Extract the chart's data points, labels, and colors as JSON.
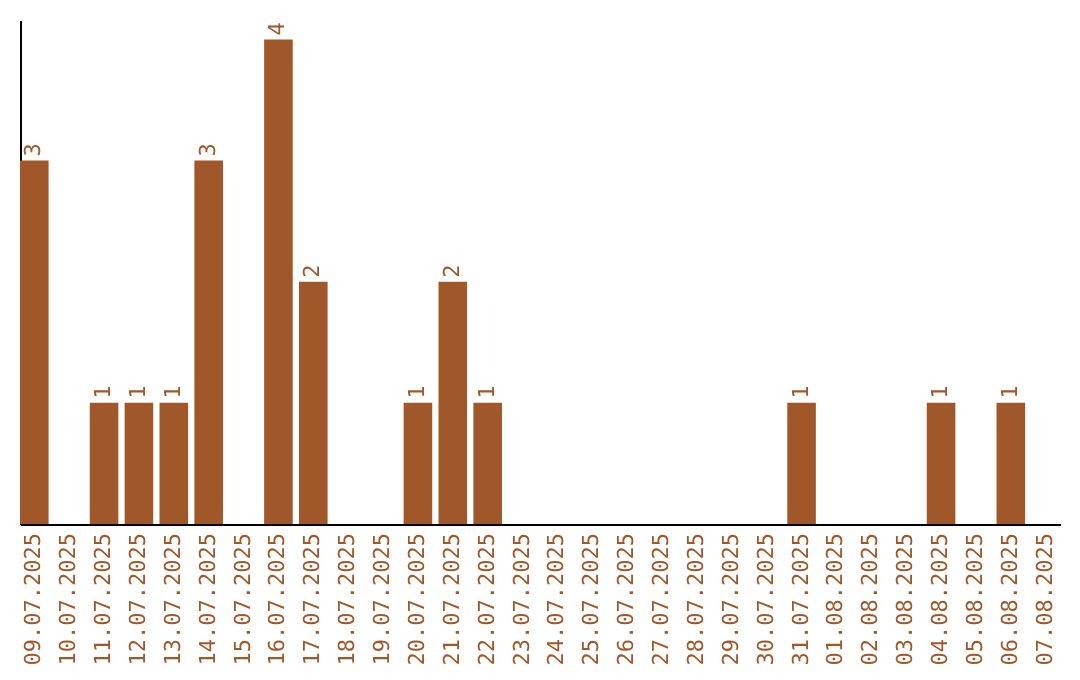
{
  "chart_data": {
    "type": "bar",
    "categories": [
      "09.07.2025",
      "10.07.2025",
      "11.07.2025",
      "12.07.2025",
      "13.07.2025",
      "14.07.2025",
      "15.07.2025",
      "16.07.2025",
      "17.07.2025",
      "18.07.2025",
      "19.07.2025",
      "20.07.2025",
      "21.07.2025",
      "22.07.2025",
      "23.07.2025",
      "24.07.2025",
      "25.07.2025",
      "26.07.2025",
      "27.07.2025",
      "28.07.2025",
      "29.07.2025",
      "30.07.2025",
      "31.07.2025",
      "01.08.2025",
      "02.08.2025",
      "03.08.2025",
      "04.08.2025",
      "05.08.2025",
      "06.08.2025",
      "07.08.2025"
    ],
    "values": [
      3,
      0,
      1,
      1,
      1,
      3,
      0,
      4,
      2,
      0,
      0,
      1,
      2,
      1,
      0,
      0,
      0,
      0,
      0,
      0,
      0,
      0,
      1,
      0,
      0,
      0,
      1,
      0,
      1,
      0
    ],
    "value_labels": [
      "3",
      null,
      "1",
      "1",
      "1",
      "3",
      null,
      "4",
      "2",
      null,
      null,
      "1",
      "2",
      "1",
      null,
      null,
      null,
      null,
      null,
      null,
      null,
      null,
      "1",
      null,
      null,
      null,
      "1",
      null,
      "1",
      null
    ],
    "color": "#a0582a",
    "ylim": [
      0,
      4.16
    ],
    "grid": false,
    "tick_labels": "x"
  }
}
